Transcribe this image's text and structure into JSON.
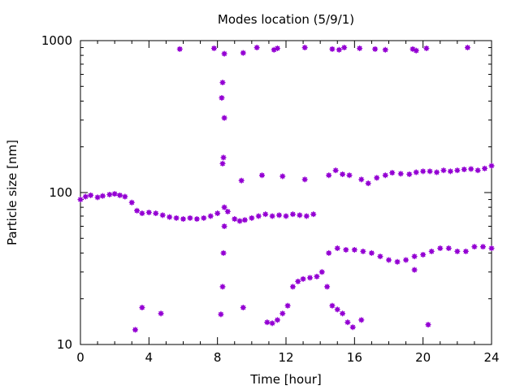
{
  "chart_data": {
    "type": "scatter",
    "title": "Modes location (5/9/1)",
    "xlabel": "Time [hour]",
    "ylabel": "Particle size [nm]",
    "xlim": [
      0,
      24
    ],
    "ylim": [
      10,
      1000
    ],
    "yscale": "log",
    "grid": false,
    "legend": "none",
    "x_ticks": [
      0,
      4,
      8,
      12,
      16,
      20,
      24
    ],
    "x_tick_labels": [
      "0",
      "4",
      "8",
      "12",
      "16",
      "20",
      "24"
    ],
    "y_ticks": [
      10,
      100,
      1000
    ],
    "y_tick_labels": [
      "10",
      "100",
      "1000"
    ],
    "marker_color": "#9400d3",
    "series": [
      {
        "points": [
          [
            0.0,
            90
          ],
          [
            0.3,
            94
          ],
          [
            0.6,
            96
          ],
          [
            1.0,
            93
          ],
          [
            1.3,
            95
          ],
          [
            1.7,
            97
          ],
          [
            2.0,
            98
          ],
          [
            2.3,
            96
          ],
          [
            2.6,
            94
          ],
          [
            3.0,
            86
          ],
          [
            3.3,
            76
          ],
          [
            3.6,
            73
          ],
          [
            4.0,
            74
          ],
          [
            4.4,
            73
          ],
          [
            4.8,
            71
          ],
          [
            5.2,
            69
          ],
          [
            5.6,
            68
          ],
          [
            6.0,
            67
          ],
          [
            6.4,
            68
          ],
          [
            6.8,
            67
          ],
          [
            7.2,
            68
          ],
          [
            7.6,
            70
          ],
          [
            8.0,
            73
          ],
          [
            8.4,
            80
          ],
          [
            8.6,
            75
          ],
          [
            9.0,
            67
          ],
          [
            9.3,
            65
          ],
          [
            9.6,
            66
          ],
          [
            10.0,
            68
          ],
          [
            10.4,
            70
          ],
          [
            10.8,
            72
          ],
          [
            11.2,
            70
          ],
          [
            11.6,
            71
          ],
          [
            12.0,
            70
          ],
          [
            12.4,
            72
          ],
          [
            12.8,
            71
          ],
          [
            13.2,
            70
          ],
          [
            13.6,
            72
          ],
          [
            14.5,
            40
          ],
          [
            15.0,
            43
          ],
          [
            15.5,
            42
          ],
          [
            16.0,
            42
          ],
          [
            16.5,
            41
          ],
          [
            17.0,
            40
          ],
          [
            17.5,
            38
          ],
          [
            18.0,
            36
          ],
          [
            18.5,
            35
          ],
          [
            19.0,
            36
          ],
          [
            19.5,
            38
          ],
          [
            20.0,
            39
          ],
          [
            20.5,
            41
          ],
          [
            21.0,
            43
          ],
          [
            21.5,
            43
          ],
          [
            22.0,
            41
          ],
          [
            22.5,
            41
          ],
          [
            23.0,
            44
          ],
          [
            23.5,
            44
          ],
          [
            24.0,
            43
          ],
          [
            9.4,
            120
          ],
          [
            10.6,
            130
          ],
          [
            11.8,
            128
          ],
          [
            13.1,
            122
          ],
          [
            14.5,
            130
          ],
          [
            14.9,
            140
          ],
          [
            15.3,
            132
          ],
          [
            15.7,
            130
          ],
          [
            16.4,
            122
          ],
          [
            16.8,
            115
          ],
          [
            17.3,
            125
          ],
          [
            17.8,
            130
          ],
          [
            18.2,
            135
          ],
          [
            18.7,
            133
          ],
          [
            19.2,
            132
          ],
          [
            19.6,
            136
          ],
          [
            20.0,
            138
          ],
          [
            20.4,
            138
          ],
          [
            20.8,
            136
          ],
          [
            21.2,
            140
          ],
          [
            21.6,
            138
          ],
          [
            22.0,
            140
          ],
          [
            22.4,
            142
          ],
          [
            22.8,
            143
          ],
          [
            23.2,
            140
          ],
          [
            23.6,
            144
          ],
          [
            24.0,
            150
          ],
          [
            10.9,
            14
          ],
          [
            11.2,
            13.8
          ],
          [
            11.5,
            14.5
          ],
          [
            11.8,
            16
          ],
          [
            12.1,
            18
          ],
          [
            12.4,
            24
          ],
          [
            12.7,
            26
          ],
          [
            13.0,
            27
          ],
          [
            13.4,
            27.5
          ],
          [
            13.8,
            28
          ],
          [
            14.1,
            30
          ],
          [
            14.4,
            24
          ],
          [
            14.7,
            18
          ],
          [
            15.0,
            17
          ],
          [
            15.3,
            16
          ],
          [
            15.6,
            14
          ],
          [
            15.9,
            13
          ],
          [
            16.4,
            14.5
          ],
          [
            8.2,
            15.8
          ],
          [
            8.3,
            24
          ],
          [
            8.35,
            40
          ],
          [
            8.4,
            60
          ],
          [
            8.3,
            155
          ],
          [
            8.35,
            170
          ],
          [
            8.4,
            310
          ],
          [
            8.25,
            420
          ],
          [
            8.3,
            530
          ],
          [
            3.2,
            12.5
          ],
          [
            3.6,
            17.5
          ],
          [
            4.7,
            16
          ],
          [
            9.5,
            17.5
          ],
          [
            19.5,
            31
          ],
          [
            20.3,
            13.5
          ],
          [
            5.8,
            880
          ],
          [
            7.8,
            890
          ],
          [
            8.4,
            820
          ],
          [
            9.5,
            830
          ],
          [
            10.3,
            900
          ],
          [
            11.3,
            870
          ],
          [
            11.5,
            890
          ],
          [
            13.1,
            900
          ],
          [
            14.7,
            880
          ],
          [
            15.1,
            870
          ],
          [
            15.4,
            900
          ],
          [
            16.3,
            890
          ],
          [
            17.2,
            880
          ],
          [
            17.8,
            870
          ],
          [
            19.4,
            880
          ],
          [
            19.6,
            860
          ],
          [
            20.2,
            890
          ],
          [
            22.6,
            900
          ]
        ]
      }
    ]
  }
}
